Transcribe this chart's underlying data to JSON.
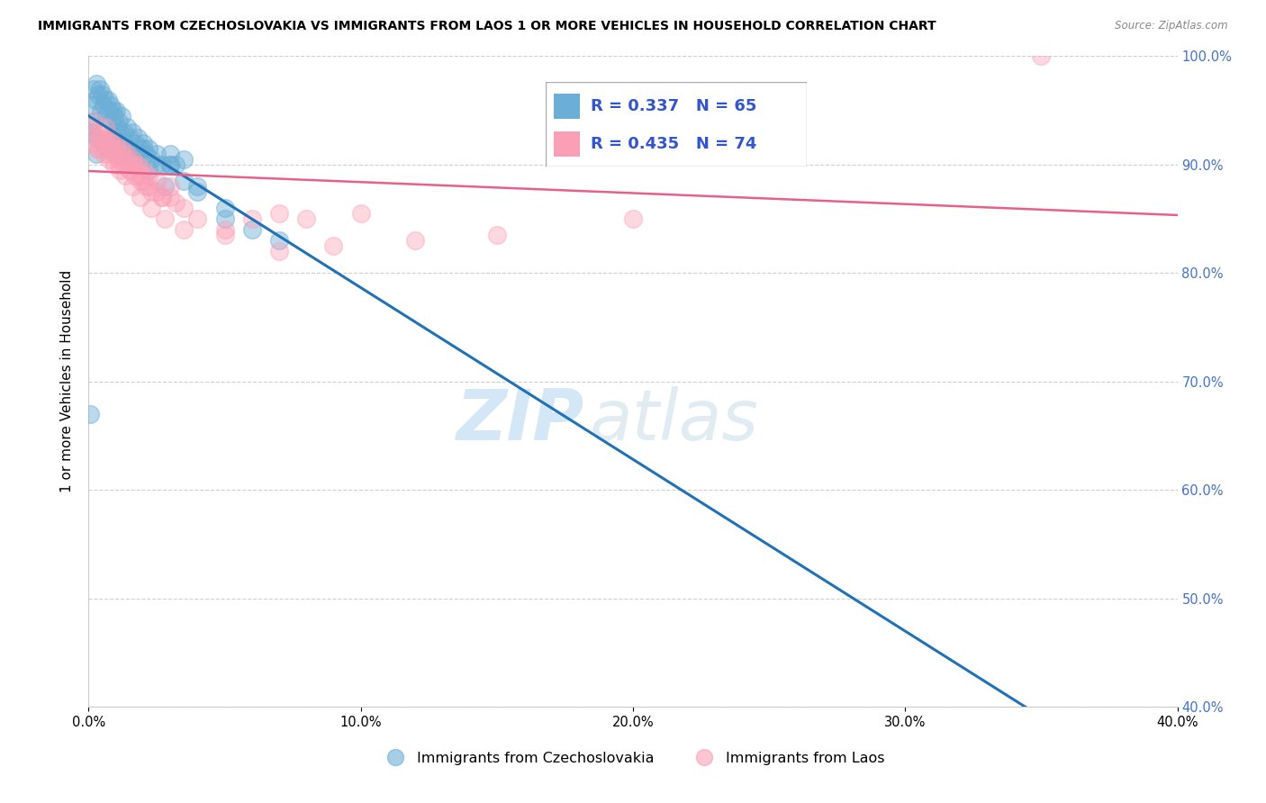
{
  "title": "IMMIGRANTS FROM CZECHOSLOVAKIA VS IMMIGRANTS FROM LAOS 1 OR MORE VEHICLES IN HOUSEHOLD CORRELATION CHART",
  "source": "Source: ZipAtlas.com",
  "ylabel": "1 or more Vehicles in Household",
  "xlim": [
    0.0,
    40.0
  ],
  "ylim": [
    40.0,
    100.0
  ],
  "blue_color": "#6baed6",
  "pink_color": "#fa9fb5",
  "blue_line_color": "#2171b5",
  "pink_line_color": "#e8608a",
  "legend_label_blue": "Immigrants from Czechoslovakia",
  "legend_label_pink": "Immigrants from Laos",
  "R_blue": 0.337,
  "N_blue": 65,
  "R_pink": 0.435,
  "N_pink": 74,
  "blue_x": [
    0.15,
    0.2,
    0.25,
    0.3,
    0.35,
    0.4,
    0.45,
    0.5,
    0.55,
    0.6,
    0.65,
    0.7,
    0.75,
    0.8,
    0.85,
    0.9,
    0.95,
    1.0,
    1.05,
    1.1,
    1.15,
    1.2,
    1.3,
    1.4,
    1.5,
    1.6,
    1.7,
    1.8,
    1.9,
    2.0,
    2.1,
    2.2,
    2.3,
    2.5,
    2.7,
    3.0,
    3.2,
    3.5,
    0.3,
    0.5,
    0.7,
    0.9,
    1.1,
    1.3,
    1.5,
    1.7,
    1.9,
    2.2,
    2.5,
    3.0,
    2.8,
    3.5,
    4.0,
    5.0,
    0.1,
    0.2,
    0.3,
    1.0,
    2.0,
    3.0,
    4.0,
    5.0,
    6.0,
    7.0,
    0.05
  ],
  "blue_y": [
    95.5,
    97.0,
    96.0,
    97.5,
    96.5,
    97.0,
    95.0,
    96.5,
    95.5,
    96.0,
    94.5,
    96.0,
    95.0,
    95.5,
    94.0,
    95.0,
    94.5,
    95.0,
    93.5,
    94.0,
    93.0,
    94.5,
    93.0,
    93.5,
    92.5,
    93.0,
    92.0,
    92.5,
    91.5,
    92.0,
    91.0,
    91.5,
    90.5,
    91.0,
    90.0,
    91.0,
    90.0,
    90.5,
    91.0,
    92.0,
    91.5,
    92.5,
    91.0,
    92.0,
    91.5,
    90.5,
    91.0,
    89.5,
    90.0,
    90.0,
    88.0,
    88.5,
    87.5,
    85.0,
    93.0,
    94.0,
    92.5,
    93.0,
    91.5,
    90.0,
    88.0,
    86.0,
    84.0,
    83.0,
    67.0
  ],
  "pink_x": [
    0.1,
    0.2,
    0.3,
    0.4,
    0.5,
    0.6,
    0.7,
    0.8,
    0.9,
    1.0,
    1.1,
    1.2,
    1.3,
    1.4,
    1.5,
    1.6,
    1.7,
    1.8,
    1.9,
    2.0,
    2.1,
    2.2,
    2.3,
    2.5,
    2.7,
    3.0,
    3.2,
    0.3,
    0.5,
    0.7,
    0.9,
    1.1,
    1.3,
    1.5,
    1.7,
    2.0,
    2.5,
    3.0,
    0.4,
    0.6,
    0.8,
    1.0,
    1.2,
    1.4,
    1.6,
    1.9,
    2.2,
    2.7,
    3.5,
    4.0,
    5.0,
    6.0,
    7.0,
    8.0,
    10.0,
    0.15,
    0.35,
    0.55,
    0.75,
    0.95,
    1.15,
    1.35,
    1.6,
    1.9,
    2.3,
    2.8,
    3.5,
    5.0,
    7.0,
    9.0,
    12.0,
    15.0,
    20.0,
    35.0
  ],
  "pink_y": [
    93.5,
    94.0,
    92.5,
    93.0,
    92.0,
    93.5,
    91.5,
    92.5,
    91.0,
    92.0,
    90.5,
    91.5,
    90.0,
    91.0,
    89.5,
    90.5,
    89.0,
    90.0,
    88.5,
    89.5,
    88.0,
    89.0,
    87.5,
    88.5,
    87.0,
    88.0,
    86.5,
    91.5,
    92.0,
    91.0,
    91.5,
    90.0,
    90.5,
    89.5,
    90.0,
    88.5,
    87.5,
    87.0,
    93.0,
    92.5,
    92.0,
    91.5,
    91.0,
    90.5,
    90.0,
    89.0,
    88.0,
    87.0,
    86.0,
    85.0,
    84.0,
    85.0,
    85.5,
    85.0,
    85.5,
    92.0,
    91.5,
    91.0,
    90.5,
    90.0,
    89.5,
    89.0,
    88.0,
    87.0,
    86.0,
    85.0,
    84.0,
    83.5,
    82.0,
    82.5,
    83.0,
    83.5,
    85.0,
    100.0
  ]
}
